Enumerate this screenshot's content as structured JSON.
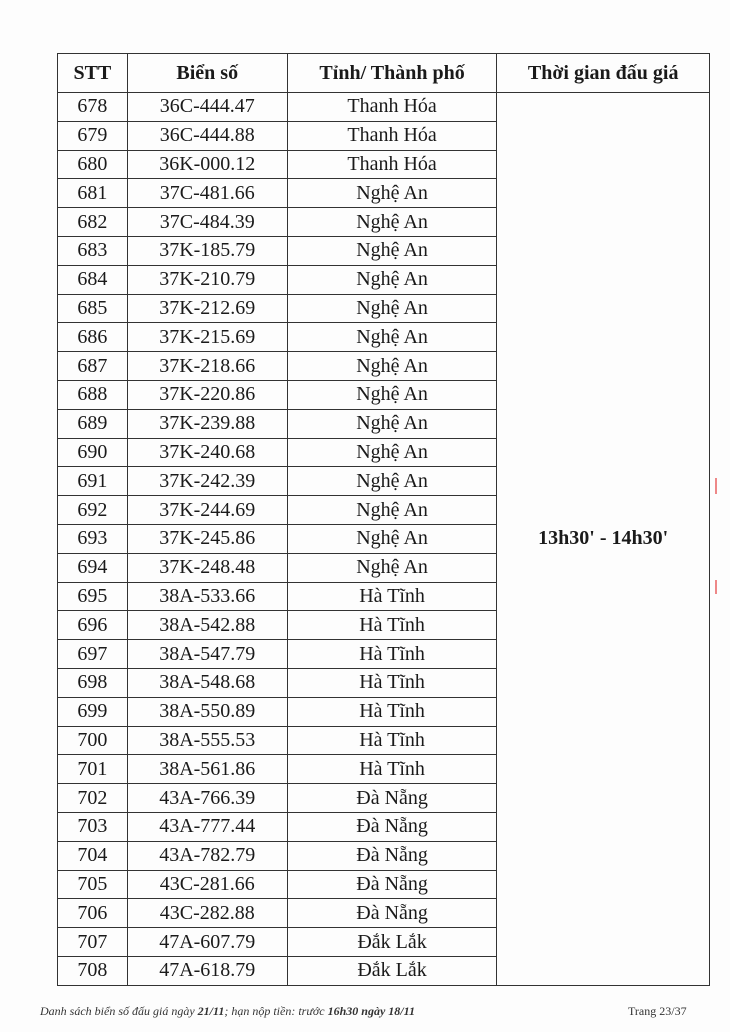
{
  "table": {
    "headers": [
      "STT",
      "Biển số",
      "Tỉnh/ Thành phố",
      "Thời gian đấu giá"
    ],
    "time_slot": "13h30' - 14h30'",
    "rows": [
      [
        "678",
        "36C-444.47",
        "Thanh Hóa"
      ],
      [
        "679",
        "36C-444.88",
        "Thanh Hóa"
      ],
      [
        "680",
        "36K-000.12",
        "Thanh Hóa"
      ],
      [
        "681",
        "37C-481.66",
        "Nghệ An"
      ],
      [
        "682",
        "37C-484.39",
        "Nghệ An"
      ],
      [
        "683",
        "37K-185.79",
        "Nghệ An"
      ],
      [
        "684",
        "37K-210.79",
        "Nghệ An"
      ],
      [
        "685",
        "37K-212.69",
        "Nghệ An"
      ],
      [
        "686",
        "37K-215.69",
        "Nghệ An"
      ],
      [
        "687",
        "37K-218.66",
        "Nghệ An"
      ],
      [
        "688",
        "37K-220.86",
        "Nghệ An"
      ],
      [
        "689",
        "37K-239.88",
        "Nghệ An"
      ],
      [
        "690",
        "37K-240.68",
        "Nghệ An"
      ],
      [
        "691",
        "37K-242.39",
        "Nghệ An"
      ],
      [
        "692",
        "37K-244.69",
        "Nghệ An"
      ],
      [
        "693",
        "37K-245.86",
        "Nghệ An"
      ],
      [
        "694",
        "37K-248.48",
        "Nghệ An"
      ],
      [
        "695",
        "38A-533.66",
        "Hà Tĩnh"
      ],
      [
        "696",
        "38A-542.88",
        "Hà Tĩnh"
      ],
      [
        "697",
        "38A-547.79",
        "Hà Tĩnh"
      ],
      [
        "698",
        "38A-548.68",
        "Hà Tĩnh"
      ],
      [
        "699",
        "38A-550.89",
        "Hà Tĩnh"
      ],
      [
        "700",
        "38A-555.53",
        "Hà Tĩnh"
      ],
      [
        "701",
        "38A-561.86",
        "Hà Tĩnh"
      ],
      [
        "702",
        "43A-766.39",
        "Đà Nẵng"
      ],
      [
        "703",
        "43A-777.44",
        "Đà Nẵng"
      ],
      [
        "704",
        "43A-782.79",
        "Đà Nẵng"
      ],
      [
        "705",
        "43C-281.66",
        "Đà Nẵng"
      ],
      [
        "706",
        "43C-282.88",
        "Đà Nẵng"
      ],
      [
        "707",
        "47A-607.79",
        "Đắk Lắk"
      ],
      [
        "708",
        "47A-618.79",
        "Đắk Lắk"
      ]
    ]
  },
  "footer": {
    "text_a": "Danh sách biển số đấu giá ngày ",
    "date": "21/11",
    "text_b": "; hạn nộp tiền: trước ",
    "deadline": "16h30 ngày 18/11",
    "page": "Trang 23/37"
  }
}
